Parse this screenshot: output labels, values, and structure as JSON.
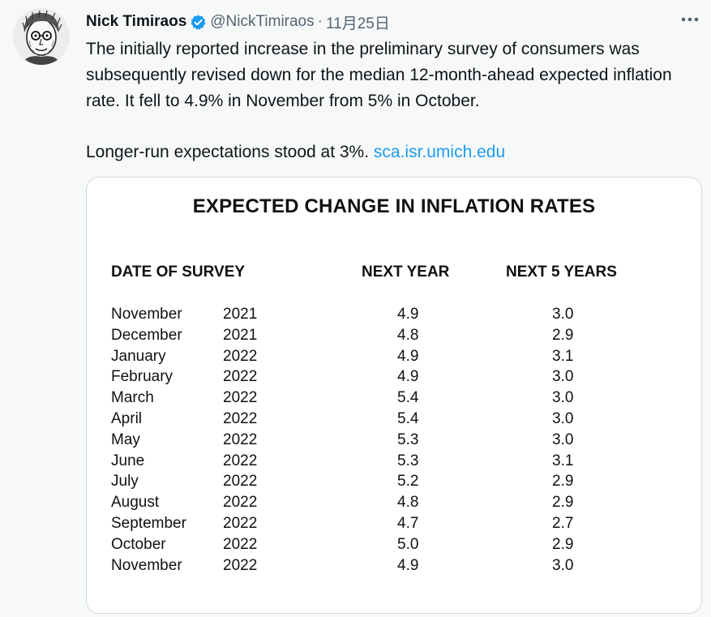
{
  "tweet": {
    "author_name": "Nick Timiraos",
    "handle": "@NickTimiraos",
    "separator": "·",
    "date": "11月25日",
    "text_p1": "The initially reported increase in the preliminary survey of consumers was subsequently revised down for the median 12-month-ahead expected inflation rate. It fell to 4.9% in November from 5% in October.",
    "text_p2": "Longer-run expectations stood at 3%.",
    "link": "sca.isr.umich.edu",
    "icons": [
      "avatar",
      "verified-badge-icon",
      "more-options-icon"
    ],
    "accent_color": "#1d9bf0"
  },
  "table": {
    "title": "EXPECTED CHANGE IN INFLATION RATES",
    "headers": {
      "date": "DATE OF SURVEY",
      "next_year": "NEXT YEAR",
      "next_5_years": "NEXT 5 YEARS"
    },
    "rows": [
      {
        "month": "November",
        "year": "2021",
        "next_year": "4.9",
        "next_5_years": "3.0"
      },
      {
        "month": "December",
        "year": "2021",
        "next_year": "4.8",
        "next_5_years": "2.9"
      },
      {
        "month": "January",
        "year": "2022",
        "next_year": "4.9",
        "next_5_years": "3.1"
      },
      {
        "month": "February",
        "year": "2022",
        "next_year": "4.9",
        "next_5_years": "3.0"
      },
      {
        "month": "March",
        "year": "2022",
        "next_year": "5.4",
        "next_5_years": "3.0"
      },
      {
        "month": "April",
        "year": "2022",
        "next_year": "5.4",
        "next_5_years": "3.0"
      },
      {
        "month": "May",
        "year": "2022",
        "next_year": "5.3",
        "next_5_years": "3.0"
      },
      {
        "month": "June",
        "year": "2022",
        "next_year": "5.3",
        "next_5_years": "3.1"
      },
      {
        "month": "July",
        "year": "2022",
        "next_year": "5.2",
        "next_5_years": "2.9"
      },
      {
        "month": "August",
        "year": "2022",
        "next_year": "4.8",
        "next_5_years": "2.9"
      },
      {
        "month": "September",
        "year": "2022",
        "next_year": "4.7",
        "next_5_years": "2.7"
      },
      {
        "month": "October",
        "year": "2022",
        "next_year": "5.0",
        "next_5_years": "2.9"
      },
      {
        "month": "November",
        "year": "2022",
        "next_year": "4.9",
        "next_5_years": "3.0"
      }
    ]
  }
}
